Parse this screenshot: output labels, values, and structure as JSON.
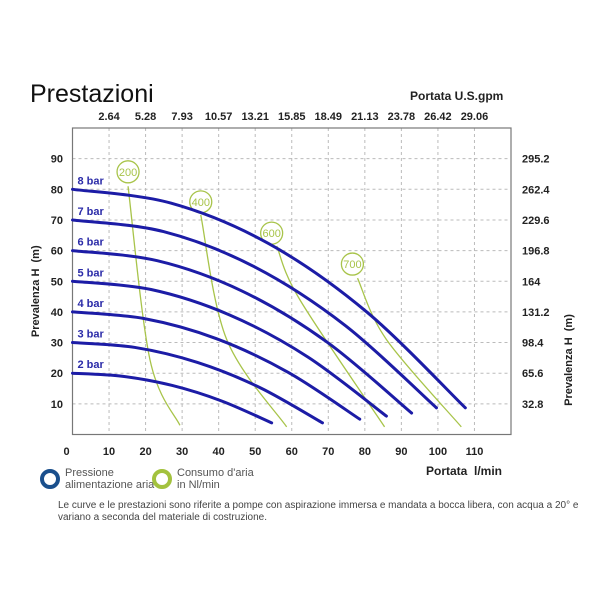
{
  "page": {
    "title": "Prestazioni",
    "note": "Le curve e le prestazioni sono riferite a pompe con aspirazione immersa e mandata a bocca libera, con acqua a 20° e variano a seconda del materiale di costruzione."
  },
  "legend": {
    "pressure": {
      "line1": "Pressione",
      "line2": "alimentazione aria",
      "color": "#1a4f8c"
    },
    "air": {
      "line1": "Consumo d'aria",
      "line2": "in Nl/min",
      "color": "#a3c23e"
    }
  },
  "colors": {
    "curve": "#1c1ca6",
    "label": "#2b2ba8",
    "air": "#a8c44a",
    "grid": "#bbbbbb"
  },
  "chart_data": {
    "type": "line",
    "title": "Prestazioni",
    "xlabel": "Portata  l/min",
    "x2label": "Portata U.S.gpm",
    "ylabel": "Prevalenza H  (m)",
    "y2label": "Prevalenza H  (m)",
    "xlim": [
      0,
      120
    ],
    "ylim": [
      0,
      100
    ],
    "grid": true,
    "x_ticks": [
      0,
      10,
      20,
      30,
      40,
      50,
      60,
      70,
      80,
      90,
      100,
      110
    ],
    "x2_ticks": [
      "2.64",
      "5.28",
      "7.93",
      "10.57",
      "13.21",
      "15.85",
      "18.49",
      "21.13",
      "23.78",
      "26.42",
      "29.06"
    ],
    "y_ticks": [
      10,
      20,
      30,
      40,
      50,
      60,
      70,
      80,
      90
    ],
    "y2_ticks": [
      "32.8",
      "65.6",
      "98.4",
      "131.2",
      "164",
      "196.8",
      "229.6",
      "262.4",
      "295.2"
    ],
    "series": [
      {
        "name": "2 bar",
        "x": [
          0,
          13.6,
          27.3,
          40.9,
          54.5
        ],
        "y": [
          20,
          19,
          16,
          10.9,
          3.8
        ]
      },
      {
        "name": "3 bar",
        "x": [
          0,
          17.1,
          34.2,
          51.3,
          68.4
        ],
        "y": [
          30,
          28.4,
          23.5,
          15.3,
          3.8
        ]
      },
      {
        "name": "4 bar",
        "x": [
          0,
          19.7,
          39.3,
          59,
          78.6
        ],
        "y": [
          40,
          37.8,
          31.3,
          20.3,
          5
        ]
      },
      {
        "name": "5 bar",
        "x": [
          0,
          21.5,
          43,
          64.4,
          85.9
        ],
        "y": [
          50,
          47.3,
          39,
          25.3,
          6
        ]
      },
      {
        "name": "6 bar",
        "x": [
          0,
          23.2,
          46.4,
          69.6,
          92.8
        ],
        "y": [
          60,
          56.7,
          46.8,
          30.2,
          7
        ]
      },
      {
        "name": "7 bar",
        "x": [
          0,
          24.9,
          49.8,
          74.7,
          99.6
        ],
        "y": [
          70,
          66.2,
          54.7,
          35.5,
          8.7
        ]
      },
      {
        "name": "8 bar",
        "x": [
          0,
          26.9,
          53.8,
          80.6,
          107.5
        ],
        "y": [
          80,
          75.5,
          62.2,
          39.9,
          8.7
        ]
      }
    ],
    "air_consumption": [
      {
        "name": "200",
        "label_at": [
          15.2,
          85.7
        ],
        "x": [
          15.2,
          21.2,
          29.4
        ],
        "y": [
          81,
          24.4,
          3
        ]
      },
      {
        "name": "400",
        "label_at": [
          35.1,
          75.9
        ],
        "x": [
          35.1,
          42.2,
          58.6
        ],
        "y": [
          71.6,
          31,
          2.5
        ]
      },
      {
        "name": "600",
        "label_at": [
          54.5,
          65.7
        ],
        "x": [
          55.9,
          62.2,
          85.4
        ],
        "y": [
          61.5,
          44,
          2.5
        ]
      },
      {
        "name": "700",
        "label_at": [
          76.6,
          55.6
        ],
        "x": [
          78,
          85.9,
          106.4
        ],
        "y": [
          51,
          31,
          2.5
        ]
      }
    ]
  }
}
